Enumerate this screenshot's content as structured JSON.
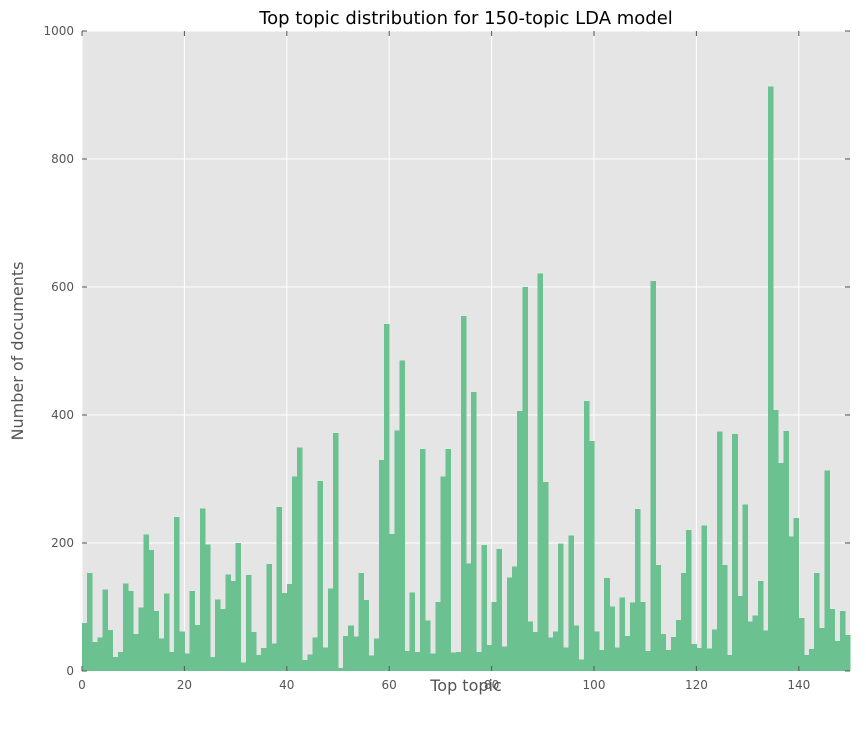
{
  "chart_data": {
    "type": "bar",
    "title": "Top topic distribution for 150-topic LDA model",
    "xlabel": "Top topic",
    "ylabel": "Number of documents",
    "xlim": [
      0,
      150
    ],
    "ylim": [
      0,
      1000
    ],
    "xticks": [
      "0",
      "20",
      "40",
      "60",
      "80",
      "100",
      "120",
      "140"
    ],
    "yticks": [
      "0",
      "200",
      "400",
      "600",
      "800",
      "1000"
    ],
    "grid": true,
    "colors": {
      "bar": "#6cc191",
      "plot_background": "#e5e5e5",
      "grid": "#ffffff"
    },
    "x": [
      0,
      1,
      2,
      3,
      4,
      5,
      6,
      7,
      8,
      9,
      10,
      11,
      12,
      13,
      14,
      15,
      16,
      17,
      18,
      19,
      20,
      21,
      22,
      23,
      24,
      25,
      26,
      27,
      28,
      29,
      30,
      31,
      32,
      33,
      34,
      35,
      36,
      37,
      38,
      39,
      40,
      41,
      42,
      43,
      44,
      45,
      46,
      47,
      48,
      49,
      50,
      51,
      52,
      53,
      54,
      55,
      56,
      57,
      58,
      59,
      60,
      61,
      62,
      63,
      64,
      65,
      66,
      67,
      68,
      69,
      70,
      71,
      72,
      73,
      74,
      75,
      76,
      77,
      78,
      79,
      80,
      81,
      82,
      83,
      84,
      85,
      86,
      87,
      88,
      89,
      90,
      91,
      92,
      93,
      94,
      95,
      96,
      97,
      98,
      99,
      100,
      101,
      102,
      103,
      104,
      105,
      106,
      107,
      108,
      109,
      110,
      111,
      112,
      113,
      114,
      115,
      116,
      117,
      118,
      119,
      120,
      121,
      122,
      123,
      124,
      125,
      126,
      127,
      128,
      129,
      130,
      131,
      132,
      133,
      134,
      135,
      136,
      137,
      138,
      139,
      140,
      141,
      142,
      143,
      144,
      145,
      146,
      147,
      148,
      149
    ],
    "values": [
      75,
      153,
      45,
      52,
      127,
      64,
      22,
      30,
      137,
      125,
      58,
      99,
      213,
      189,
      94,
      51,
      121,
      30,
      241,
      62,
      27,
      125,
      72,
      254,
      198,
      22,
      112,
      97,
      151,
      141,
      200,
      13,
      150,
      61,
      25,
      36,
      167,
      43,
      256,
      122,
      136,
      304,
      349,
      17,
      26,
      52,
      297,
      37,
      129,
      372,
      5,
      55,
      71,
      54,
      153,
      111,
      24,
      51,
      330,
      542,
      214,
      376,
      485,
      31,
      123,
      30,
      347,
      79,
      27,
      108,
      304,
      347,
      29,
      30,
      555,
      168,
      436,
      30,
      197,
      41,
      108,
      191,
      38,
      146,
      163,
      406,
      600,
      77,
      61,
      621,
      295,
      52,
      62,
      199,
      37,
      212,
      71,
      18,
      422,
      359,
      62,
      33,
      145,
      101,
      37,
      115,
      55,
      107,
      253,
      108,
      31,
      609,
      166,
      58,
      33,
      53,
      80,
      153,
      220,
      42,
      36,
      227,
      35,
      65,
      374,
      166,
      25,
      370,
      117,
      260,
      77,
      87,
      141,
      63,
      913,
      408,
      325,
      375,
      210,
      239,
      83,
      25,
      34,
      153,
      67,
      313,
      97,
      47,
      94,
      56
    ]
  }
}
